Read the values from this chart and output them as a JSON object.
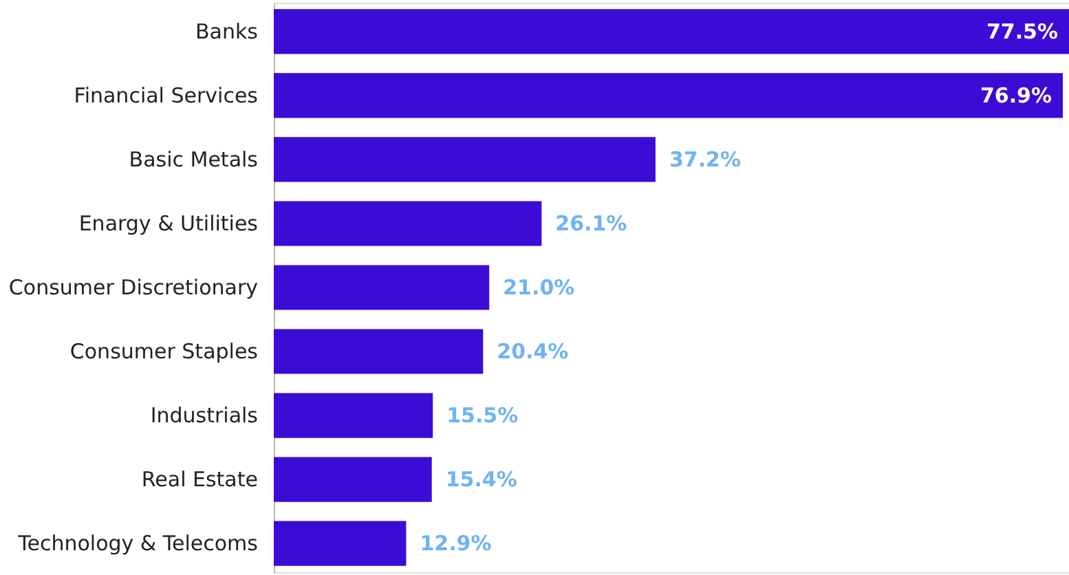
{
  "chart_data": {
    "type": "bar",
    "orientation": "horizontal",
    "categories": [
      "Banks",
      "Financial Services",
      "Basic Metals",
      "Enargy & Utilities",
      "Consumer Discretionary",
      "Consumer Staples",
      "Industrials",
      "Real Estate",
      "Technology & Telecoms"
    ],
    "values": [
      77.5,
      76.9,
      37.2,
      26.1,
      21.0,
      20.4,
      15.5,
      15.4,
      12.9
    ],
    "value_labels": [
      "77.5%",
      "76.9%",
      "37.2%",
      "26.1%",
      "21.0%",
      "20.4%",
      "15.5%",
      "15.4%",
      "12.9%"
    ],
    "color": "#3d0bd6"
  }
}
